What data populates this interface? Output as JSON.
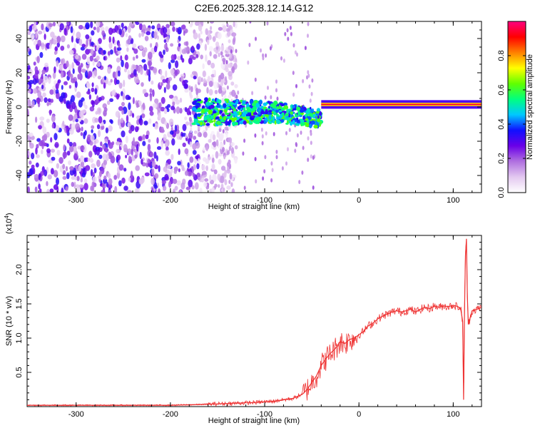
{
  "title": "C2E6.2025.328.12.14.G12",
  "chart_data": [
    {
      "type": "heatmap",
      "xlabel": "Height of straight line (km)",
      "ylabel": "Frequency (Hz)",
      "xlim": [
        -352,
        130
      ],
      "ylim": [
        -50,
        50
      ],
      "x_ticks": [
        -300,
        -200,
        -100,
        0,
        100
      ],
      "x_tick_labels": [
        "-300",
        "-200",
        "-100",
        "0",
        "100"
      ],
      "y_ticks": [
        -40,
        -20,
        0,
        20,
        40
      ],
      "y_tick_labels": [
        "-40",
        "-20",
        "0",
        "20",
        "40"
      ],
      "colorbar": {
        "label": "Normalized spectral amplitude",
        "range": [
          0.0,
          1.0
        ],
        "ticks": [
          0.0,
          0.2,
          0.4,
          0.6,
          0.8
        ],
        "tick_labels": [
          "0.0",
          "0.2",
          "0.4",
          "0.6",
          "0.8"
        ],
        "colors": [
          "#ffffff",
          "#e3c8f0",
          "#b070e0",
          "#6a00e8",
          "#1010ff",
          "#00c8ff",
          "#00ff80",
          "#60ff00",
          "#ffff00",
          "#ff8000",
          "#ff0000",
          "#ff0080"
        ]
      },
      "regions": [
        {
          "x": [
            -352,
            -150
          ],
          "description_values": {
            "amplitude": 0.25
          }
        },
        {
          "x": [
            -175,
            -40
          ],
          "freq_center": -3,
          "amplitude": 0.5
        },
        {
          "x": [
            -40,
            130
          ],
          "freq_center": 1.5,
          "amplitude": 1.0
        }
      ]
    },
    {
      "type": "line",
      "xlabel": "Height of straight line (km)",
      "ylabel": "SNR (10 * v/v)",
      "y_scale_label": "(x10",
      "y_scale_exp": "4",
      "xlim": [
        -352,
        130
      ],
      "ylim": [
        0,
        2.5
      ],
      "x_ticks": [
        -300,
        -200,
        -100,
        0,
        100
      ],
      "x_tick_labels": [
        "-300",
        "-200",
        "-100",
        "0",
        "100"
      ],
      "y_ticks": [
        0.5,
        1.0,
        1.5,
        2.0
      ],
      "y_tick_labels": [
        "0.5",
        "1.0",
        "1.5",
        "2.0"
      ],
      "color": "#ee3030",
      "series": [
        {
          "x": [
            -352,
            -300,
            -250,
            -200,
            -170,
            -150,
            -130,
            -110,
            -100,
            -90,
            -80,
            -70,
            -60,
            -55,
            -50,
            -45,
            -40,
            -35,
            -30,
            -25,
            -20,
            -15,
            -10,
            -5,
            0,
            5,
            10,
            15,
            20,
            25,
            30,
            35,
            40,
            45,
            50,
            55,
            60,
            65,
            70,
            75,
            80,
            85,
            90,
            95,
            100,
            105,
            108,
            110,
            111,
            112,
            113,
            114,
            115,
            116,
            118,
            120,
            125,
            130
          ],
          "y": [
            0.02,
            0.02,
            0.02,
            0.02,
            0.03,
            0.04,
            0.05,
            0.06,
            0.07,
            0.08,
            0.1,
            0.12,
            0.18,
            0.25,
            0.35,
            0.45,
            0.6,
            0.7,
            0.78,
            0.85,
            0.95,
            0.92,
            0.98,
            1.0,
            1.05,
            1.1,
            1.18,
            1.22,
            1.28,
            1.32,
            1.35,
            1.38,
            1.4,
            1.38,
            1.4,
            1.42,
            1.38,
            1.42,
            1.45,
            1.43,
            1.47,
            1.45,
            1.47,
            1.46,
            1.48,
            1.46,
            1.42,
            1.25,
            0.1,
            1.4,
            2.2,
            2.45,
            1.6,
            1.2,
            1.3,
            1.4,
            1.42,
            1.45
          ]
        }
      ]
    }
  ]
}
